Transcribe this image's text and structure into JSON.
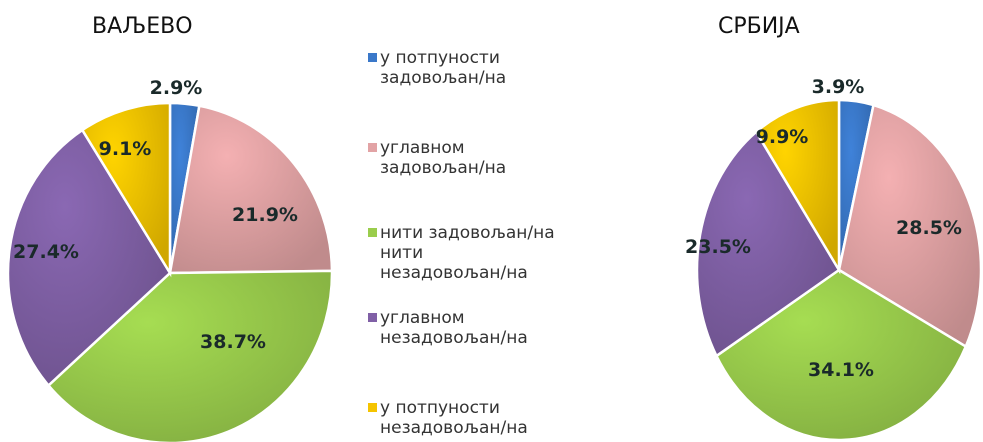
{
  "titles": {
    "left": "ВАЉЕВО",
    "right": "СРБИЈА"
  },
  "legend": [
    {
      "label": "у потпуности\nзадовољан/на",
      "color": "#3a78c9",
      "icon": "square-swatch"
    },
    {
      "label": "углавном\nзадовољан/на",
      "color": "#e2a3a5",
      "icon": "square-swatch"
    },
    {
      "label": "нити задовољан/на\nнити\nнезадовољан/на",
      "color": "#9acd4c",
      "icon": "square-swatch"
    },
    {
      "label": "углавном\nнезадовољан/на",
      "color": "#8060a6",
      "icon": "square-swatch"
    },
    {
      "label": "у потпуности\nнезадовољан/на",
      "color": "#f5c400",
      "icon": "square-swatch"
    }
  ],
  "chart_data": [
    {
      "type": "pie",
      "title": "ВАЉЕВО",
      "categories": [
        "у потпуности задовољан/на",
        "углавном задовољан/на",
        "нити задовољан/на нити незадовољан/на",
        "углавном незадовољан/на",
        "у потпуности незадовољан/на"
      ],
      "values": [
        2.9,
        21.9,
        38.7,
        27.4,
        9.1
      ],
      "labels": [
        "2.9%",
        "21.9%",
        "38.7%",
        "27.4%",
        "9.1%"
      ],
      "colors": [
        "#3a78c9",
        "#e2a3a5",
        "#9acd4c",
        "#8060a6",
        "#f5c400"
      ],
      "legend": "right"
    },
    {
      "type": "pie",
      "title": "СРБИЈА",
      "categories": [
        "у потпуности задовољан/на",
        "углавном задовољан/на",
        "нити задовољан/на нити незадовољан/на",
        "углавном незадовољан/на",
        "у потпуности незадовољан/на"
      ],
      "values": [
        3.9,
        28.5,
        34.1,
        23.5,
        9.9
      ],
      "labels": [
        "3.9%",
        "28.5%",
        "34.1%",
        "23.5%",
        "9.9%"
      ],
      "colors": [
        "#3a78c9",
        "#e2a3a5",
        "#9acd4c",
        "#8060a6",
        "#f5c400"
      ],
      "legend": "left"
    }
  ]
}
